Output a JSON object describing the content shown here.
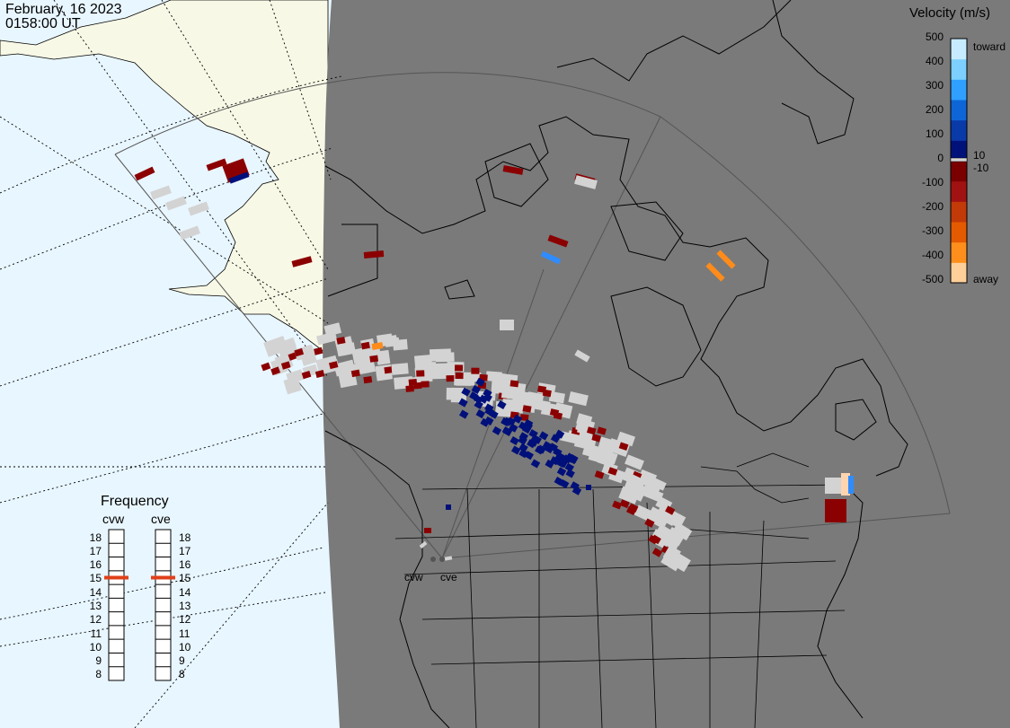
{
  "header": {
    "date": "February, 16 2023",
    "time": "0158:00 UT"
  },
  "legend": {
    "title": "Velocity (m/s)",
    "ticks": [
      "500",
      "400",
      "300",
      "200",
      "100",
      "0",
      "-100",
      "-200",
      "-300",
      "-400",
      "-500"
    ],
    "near_zero_labels": [
      "10",
      "-10"
    ],
    "toward_label": "toward",
    "away_label": "away",
    "colors": [
      "#c8ecff",
      "#7ccfff",
      "#2fa0ff",
      "#0e66d6",
      "#0a3aa8",
      "#00127a",
      "#7a0000",
      "#a01212",
      "#c23a08",
      "#e45a00",
      "#ff8f1c",
      "#ffcf9a"
    ]
  },
  "frequency": {
    "title": "Frequency",
    "radars": [
      {
        "name": "cvw",
        "value_mhz": 15
      },
      {
        "name": "cve",
        "value_mhz": 15
      }
    ],
    "scale": [
      "18",
      "17",
      "16",
      "15",
      "14",
      "13",
      "12",
      "11",
      "10",
      "9",
      "8"
    ],
    "indicator_color": "#e0401a"
  },
  "sites": {
    "cvw": "cvw",
    "cve": "cve"
  },
  "map_colors": {
    "ocean": "#e8f6ff",
    "land_sunlit": "#f8f8e6",
    "night": "#7a7a7a",
    "ground_scatter": "#d3d3d3"
  }
}
